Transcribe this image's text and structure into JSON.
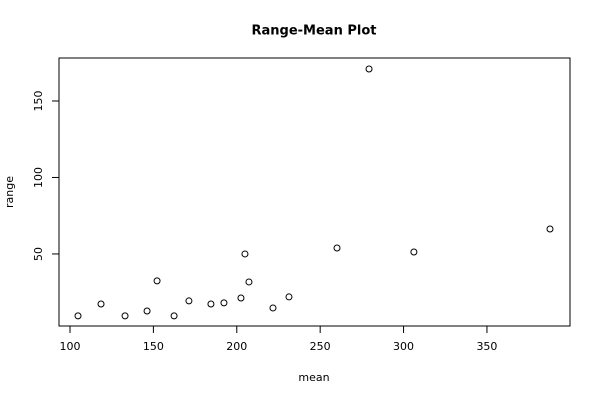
{
  "chart_data": {
    "type": "scatter",
    "title": "Range-Mean Plot",
    "x_label": "mean",
    "y_label": "range",
    "x": [
      104.8,
      118.6,
      133,
      146.2,
      152.2,
      162.4,
      171.3,
      184.5,
      192.3,
      202.5,
      204.9,
      207.3,
      221.7,
      231.3,
      260.1,
      279.3,
      306.2,
      387.8
    ],
    "values": [
      9.5,
      17.3,
      9.5,
      12.7,
      32.4,
      9.5,
      19.3,
      17.3,
      18,
      21.2,
      50,
      31.7,
      14.7,
      21.9,
      53.9,
      170.9,
      51.3,
      66.3
    ],
    "color": "#000000",
    "xlim": [
      93.4,
      399.8
    ],
    "xticks": [
      100,
      150,
      200,
      250,
      300,
      350
    ],
    "ylim": [
      2.9,
      178.1
    ],
    "yticks": [
      50,
      100,
      150
    ]
  }
}
